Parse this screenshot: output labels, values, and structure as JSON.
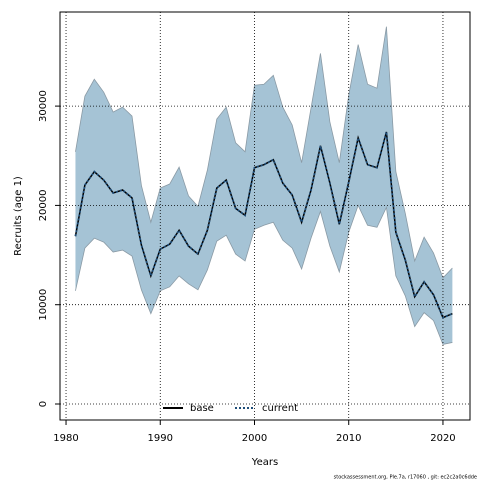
{
  "chart_data": {
    "type": "line",
    "xlabel": "Years",
    "ylabel": "Recruits (age 1)",
    "footer": "stockassessment.org, Ple.7a, r17060 , git: ec2c2a0c6dde",
    "x": [
      1981,
      1982,
      1983,
      1984,
      1985,
      1986,
      1987,
      1988,
      1989,
      1990,
      1991,
      1992,
      1993,
      1994,
      1995,
      1996,
      1997,
      1998,
      1999,
      2000,
      2001,
      2002,
      2003,
      2004,
      2005,
      2006,
      2007,
      2008,
      2009,
      2010,
      2011,
      2012,
      2013,
      2014,
      2015,
      2016,
      2017,
      2018,
      2019,
      2020,
      2021
    ],
    "series": [
      {
        "name": "base",
        "color": "#000000",
        "dash": false,
        "values": [
          16900,
          22050,
          23400,
          22550,
          21250,
          21550,
          20750,
          16000,
          12900,
          15600,
          16100,
          17500,
          15900,
          15100,
          17500,
          21750,
          22550,
          19700,
          19000,
          23800,
          24100,
          24600,
          22250,
          21050,
          18300,
          21550,
          26000,
          22250,
          18100,
          22350,
          26800,
          24100,
          23800,
          27400,
          17300,
          14500,
          10800,
          12300,
          11000,
          8700,
          9100
        ]
      },
      {
        "name": "current",
        "color": "#1f4e79",
        "dash": true,
        "values": [
          16900,
          22050,
          23400,
          22550,
          21250,
          21550,
          20750,
          16000,
          12900,
          15600,
          16100,
          17500,
          15900,
          15100,
          17500,
          21750,
          22550,
          19700,
          19000,
          23800,
          24100,
          24600,
          22250,
          21050,
          18300,
          21550,
          26000,
          22250,
          18100,
          22350,
          26800,
          24100,
          23800,
          27400,
          17300,
          14500,
          10800,
          12300,
          11000,
          8700,
          9100
        ]
      }
    ],
    "band": {
      "color": "#a5c3d5",
      "upper": [
        25400,
        31000,
        32700,
        31400,
        29400,
        29900,
        29000,
        22000,
        18300,
        21750,
        22150,
        23850,
        20950,
        19900,
        23550,
        28700,
        29900,
        26300,
        25400,
        32100,
        32200,
        33100,
        29900,
        28100,
        24300,
        29800,
        35300,
        28400,
        24300,
        31100,
        36200,
        32200,
        31800,
        38000,
        23400,
        19200,
        14400,
        16800,
        15200,
        12700,
        13700
      ],
      "lower": [
        11400,
        15700,
        16700,
        16300,
        15300,
        15500,
        14900,
        11500,
        9100,
        11400,
        11800,
        12900,
        12100,
        11500,
        13500,
        16400,
        17000,
        15100,
        14400,
        17600,
        18000,
        18300,
        16500,
        15700,
        13600,
        16700,
        19400,
        15900,
        13300,
        17300,
        20000,
        18000,
        17800,
        19800,
        12900,
        10900,
        7800,
        9200,
        8400,
        6000,
        6200
      ]
    },
    "xlim": [
      1979.36,
      2022.87
    ],
    "ylim": [
      -1610,
      39476
    ],
    "xticks": [
      1980,
      1990,
      2000,
      2010,
      2020
    ],
    "yticks": [
      0,
      10000,
      20000,
      30000
    ],
    "grid": true
  }
}
